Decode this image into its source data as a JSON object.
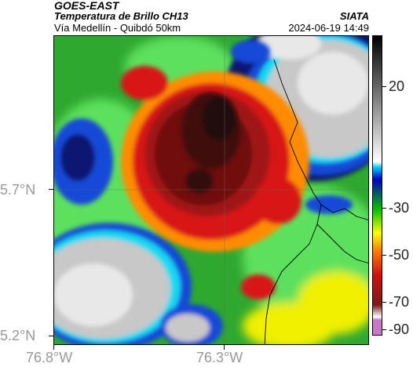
{
  "header": {
    "satellite": "GOES-EAST",
    "product": "Temperatura de Brillo CH13",
    "region": "Vía Medellín - Quibdó 50km",
    "organization": "SIATA",
    "datetime": "2024-06-19 14:49"
  },
  "axes": {
    "lon_ticks": [
      "76.8°W",
      "76.3°W"
    ],
    "lat_ticks": [
      "5.7°N",
      "5.2°N"
    ]
  },
  "colorbar": {
    "tick_labels": [
      "20",
      "-30",
      "-50",
      "-70",
      "-90"
    ],
    "colors": [
      "#c87ac8",
      "#7a1a1a",
      "#d01010",
      "#ff7a00",
      "#ffff00",
      "#00c000",
      "#0000c0",
      "#00c8ff",
      "#ffffff",
      "#000000"
    ]
  },
  "map": {
    "colors": {
      "green": "#2fa82f",
      "lightgreen": "#5de05d",
      "yellow": "#f0f000",
      "orange": "#ff8c00",
      "red": "#d81818",
      "darkred": "#701010",
      "black": "#200808",
      "blue": "#1848d8",
      "navy": "#101870",
      "cyan": "#18d8f0",
      "gray": "#c8c8c8",
      "white": "#e8e8e8"
    }
  }
}
